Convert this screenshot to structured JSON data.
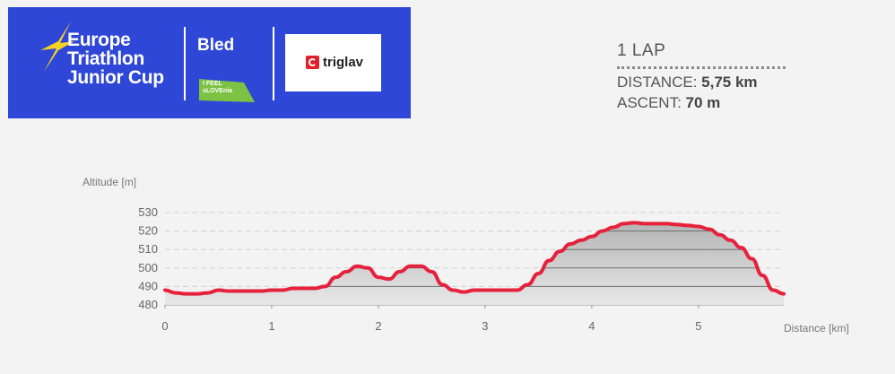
{
  "logo": {
    "line1": "Europe",
    "line2": "Triathlon",
    "line3": "Junior Cup"
  },
  "venue": "Bled",
  "tourism": {
    "line1": "I FEEL",
    "line2": "sLOVEnia"
  },
  "sponsor": {
    "name": "triglav"
  },
  "course": {
    "lap_label": "1 LAP",
    "distance_label": "DISTANCE:",
    "distance_value": "5,75 km",
    "ascent_label": "ASCENT:",
    "ascent_value": "70 m"
  },
  "colors": {
    "banner": "#2f47d6",
    "line": "#e6213c",
    "fill": "#bdbdbd"
  },
  "chart_data": {
    "type": "area",
    "ylabel": "Altitude [m]",
    "xlabel": "Distance [km]",
    "xlim": [
      0,
      5.8
    ],
    "ylim": [
      480,
      530
    ],
    "xticks": [
      0,
      1,
      2,
      3,
      4,
      5
    ],
    "yticks": [
      480,
      490,
      500,
      510,
      520,
      530
    ],
    "grid": true,
    "series": [
      {
        "x": [
          0,
          0.1,
          0.2,
          0.3,
          0.4,
          0.5,
          0.6,
          0.7,
          0.8,
          0.9,
          1.0,
          1.1,
          1.2,
          1.3,
          1.4,
          1.5,
          1.6,
          1.7,
          1.8,
          1.9,
          2.0,
          2.1,
          2.2,
          2.3,
          2.4,
          2.5,
          2.6,
          2.7,
          2.8,
          2.9,
          3.0,
          3.1,
          3.2,
          3.3,
          3.4,
          3.5,
          3.6,
          3.7,
          3.8,
          3.9,
          4.0,
          4.1,
          4.2,
          4.3,
          4.4,
          4.5,
          4.6,
          4.7,
          4.8,
          4.9,
          5.0,
          5.1,
          5.2,
          5.3,
          5.4,
          5.5,
          5.6,
          5.7,
          5.8
        ],
        "y": [
          488,
          486.5,
          486,
          486,
          486.5,
          488,
          487.5,
          487.5,
          487.5,
          487.5,
          488,
          488,
          489,
          489,
          489,
          490,
          495,
          498,
          501,
          500,
          495,
          494,
          498,
          501,
          501,
          498,
          491,
          488,
          487,
          488,
          488,
          488,
          488,
          488,
          491,
          497,
          504,
          509,
          513,
          515,
          517,
          520,
          522,
          524,
          524.5,
          524,
          524,
          524,
          523.5,
          523,
          522.5,
          521,
          518,
          515,
          511,
          505,
          496,
          488,
          486
        ]
      }
    ]
  }
}
